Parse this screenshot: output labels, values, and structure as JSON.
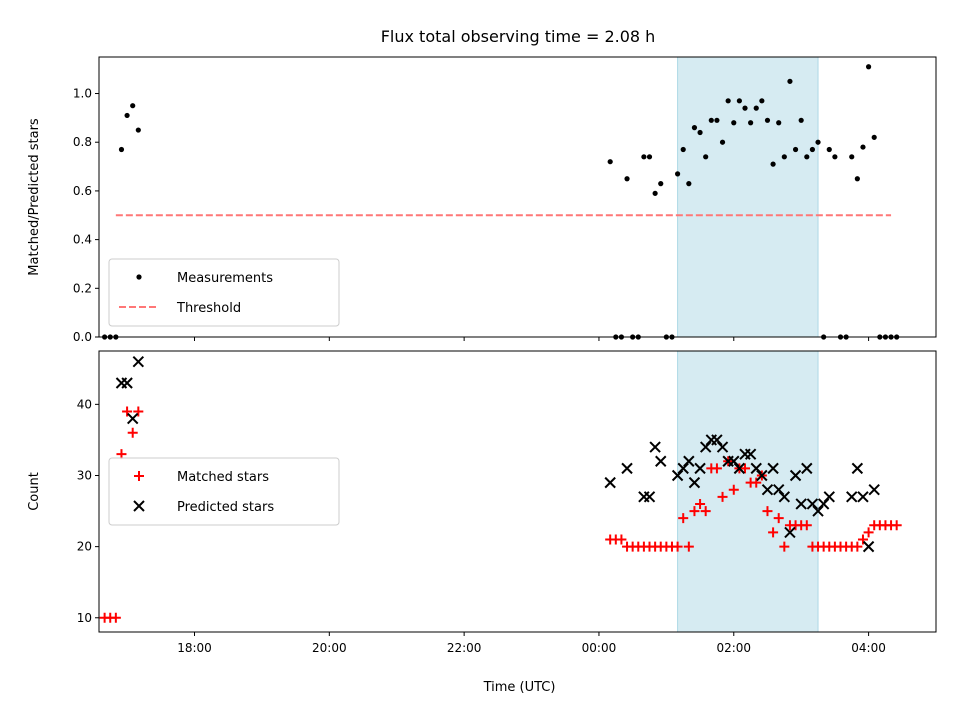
{
  "title": "Flux total observing time = 2.08 h",
  "chart_data": [
    {
      "type": "scatter",
      "panel": "top",
      "ylabel": "Matched/Predicted stars",
      "xlabel": "",
      "xlim": [
        "16:35",
        "05:00"
      ],
      "ylim": [
        0,
        1.15
      ],
      "yticks": [
        0.0,
        0.2,
        0.4,
        0.6,
        0.8,
        1.0
      ],
      "ytick_labels": [
        "0.0",
        "0.2",
        "0.4",
        "0.6",
        "0.8",
        "1.0"
      ],
      "highlight_span": [
        "01:10",
        "03:15"
      ],
      "legend": {
        "placement": "lower-left",
        "entries": [
          "Measurements",
          "Threshold"
        ]
      },
      "series": [
        {
          "name": "Measurements",
          "style": "dot",
          "color": "#000000",
          "points": [
            [
              "16:40",
              0.0
            ],
            [
              "16:45",
              0.0
            ],
            [
              "16:50",
              0.0
            ],
            [
              "16:55",
              0.77
            ],
            [
              "17:00",
              0.91
            ],
            [
              "17:05",
              0.95
            ],
            [
              "17:10",
              0.85
            ],
            [
              "00:10",
              0.72
            ],
            [
              "00:15",
              0.0
            ],
            [
              "00:20",
              0.0
            ],
            [
              "00:25",
              0.65
            ],
            [
              "00:30",
              0.0
            ],
            [
              "00:35",
              0.0
            ],
            [
              "00:40",
              0.74
            ],
            [
              "00:45",
              0.74
            ],
            [
              "00:50",
              0.59
            ],
            [
              "00:55",
              0.63
            ],
            [
              "01:00",
              0.0
            ],
            [
              "01:05",
              0.0
            ],
            [
              "01:10",
              0.67
            ],
            [
              "01:15",
              0.77
            ],
            [
              "01:20",
              0.63
            ],
            [
              "01:25",
              0.86
            ],
            [
              "01:30",
              0.84
            ],
            [
              "01:35",
              0.74
            ],
            [
              "01:40",
              0.89
            ],
            [
              "01:45",
              0.89
            ],
            [
              "01:50",
              0.8
            ],
            [
              "01:55",
              0.97
            ],
            [
              "02:00",
              0.88
            ],
            [
              "02:05",
              0.97
            ],
            [
              "02:10",
              0.94
            ],
            [
              "02:15",
              0.88
            ],
            [
              "02:20",
              0.94
            ],
            [
              "02:25",
              0.97
            ],
            [
              "02:30",
              0.89
            ],
            [
              "02:35",
              0.71
            ],
            [
              "02:40",
              0.88
            ],
            [
              "02:45",
              0.74
            ],
            [
              "02:50",
              1.05
            ],
            [
              "02:55",
              0.77
            ],
            [
              "03:00",
              0.89
            ],
            [
              "03:05",
              0.74
            ],
            [
              "03:10",
              0.77
            ],
            [
              "03:15",
              0.8
            ],
            [
              "03:20",
              0.0
            ],
            [
              "03:25",
              0.77
            ],
            [
              "03:30",
              0.74
            ],
            [
              "03:35",
              0.0
            ],
            [
              "03:40",
              0.0
            ],
            [
              "03:45",
              0.74
            ],
            [
              "03:50",
              0.65
            ],
            [
              "03:55",
              0.78
            ],
            [
              "04:00",
              1.11
            ],
            [
              "04:05",
              0.82
            ],
            [
              "04:10",
              0.0
            ],
            [
              "04:15",
              0.0
            ],
            [
              "04:20",
              0.0
            ],
            [
              "04:25",
              0.0
            ]
          ]
        },
        {
          "name": "Threshold",
          "style": "dashed-line",
          "color": "#ff7777",
          "points": [
            [
              "16:50",
              0.5
            ],
            [
              "04:20",
              0.5
            ]
          ]
        }
      ]
    },
    {
      "type": "scatter",
      "panel": "bottom",
      "ylabel": "Count",
      "xlabel": "Time (UTC)",
      "xlim": [
        "16:35",
        "05:00"
      ],
      "ylim": [
        8,
        47.5
      ],
      "yticks": [
        10,
        20,
        30,
        40
      ],
      "ytick_labels": [
        "10",
        "20",
        "30",
        "40"
      ],
      "xticks": [
        "18:00",
        "20:00",
        "22:00",
        "00:00",
        "02:00",
        "04:00"
      ],
      "xtick_labels": [
        "18:00",
        "20:00",
        "22:00",
        "00:00",
        "02:00",
        "04:00"
      ],
      "highlight_span": [
        "01:10",
        "03:15"
      ],
      "legend": {
        "placement": "center-left",
        "entries": [
          "Matched stars",
          "Predicted stars"
        ]
      },
      "series": [
        {
          "name": "Matched stars",
          "style": "plus",
          "color": "#ff0000",
          "points": [
            [
              "16:40",
              10
            ],
            [
              "16:45",
              10
            ],
            [
              "16:50",
              10
            ],
            [
              "16:55",
              33
            ],
            [
              "17:00",
              39
            ],
            [
              "17:05",
              36
            ],
            [
              "17:10",
              39
            ],
            [
              "00:10",
              21
            ],
            [
              "00:15",
              21
            ],
            [
              "00:20",
              21
            ],
            [
              "00:25",
              20
            ],
            [
              "00:30",
              20
            ],
            [
              "00:35",
              20
            ],
            [
              "00:40",
              20
            ],
            [
              "00:45",
              20
            ],
            [
              "00:50",
              20
            ],
            [
              "00:55",
              20
            ],
            [
              "01:00",
              20
            ],
            [
              "01:05",
              20
            ],
            [
              "01:10",
              20
            ],
            [
              "01:15",
              24
            ],
            [
              "01:20",
              20
            ],
            [
              "01:25",
              25
            ],
            [
              "01:30",
              26
            ],
            [
              "01:35",
              25
            ],
            [
              "01:40",
              31
            ],
            [
              "01:45",
              31
            ],
            [
              "01:50",
              27
            ],
            [
              "01:55",
              32
            ],
            [
              "02:00",
              28
            ],
            [
              "02:05",
              31
            ],
            [
              "02:10",
              31
            ],
            [
              "02:15",
              29
            ],
            [
              "02:20",
              29
            ],
            [
              "02:25",
              30
            ],
            [
              "02:30",
              25
            ],
            [
              "02:35",
              22
            ],
            [
              "02:40",
              24
            ],
            [
              "02:45",
              20
            ],
            [
              "02:50",
              23
            ],
            [
              "02:55",
              23
            ],
            [
              "03:00",
              23
            ],
            [
              "03:05",
              23
            ],
            [
              "03:10",
              20
            ],
            [
              "03:15",
              20
            ],
            [
              "03:20",
              20
            ],
            [
              "03:25",
              20
            ],
            [
              "03:30",
              20
            ],
            [
              "03:35",
              20
            ],
            [
              "03:40",
              20
            ],
            [
              "03:45",
              20
            ],
            [
              "03:50",
              20
            ],
            [
              "03:55",
              21
            ],
            [
              "04:00",
              22
            ],
            [
              "04:05",
              23
            ],
            [
              "04:10",
              23
            ],
            [
              "04:15",
              23
            ],
            [
              "04:20",
              23
            ],
            [
              "04:25",
              23
            ]
          ]
        },
        {
          "name": "Predicted stars",
          "style": "x",
          "color": "#000000",
          "points": [
            [
              "16:55",
              43
            ],
            [
              "17:00",
              43
            ],
            [
              "17:05",
              38
            ],
            [
              "17:10",
              46
            ],
            [
              "00:10",
              29
            ],
            [
              "00:25",
              31
            ],
            [
              "00:40",
              27
            ],
            [
              "00:45",
              27
            ],
            [
              "00:50",
              34
            ],
            [
              "00:55",
              32
            ],
            [
              "01:10",
              30
            ],
            [
              "01:15",
              31
            ],
            [
              "01:20",
              32
            ],
            [
              "01:25",
              29
            ],
            [
              "01:30",
              31
            ],
            [
              "01:35",
              34
            ],
            [
              "01:40",
              35
            ],
            [
              "01:45",
              35
            ],
            [
              "01:50",
              34
            ],
            [
              "01:55",
              32
            ],
            [
              "02:00",
              32
            ],
            [
              "02:05",
              31
            ],
            [
              "02:10",
              33
            ],
            [
              "02:15",
              33
            ],
            [
              "02:20",
              31
            ],
            [
              "02:25",
              30
            ],
            [
              "02:30",
              28
            ],
            [
              "02:35",
              31
            ],
            [
              "02:40",
              28
            ],
            [
              "02:45",
              27
            ],
            [
              "02:50",
              22
            ],
            [
              "02:55",
              30
            ],
            [
              "03:00",
              26
            ],
            [
              "03:05",
              31
            ],
            [
              "03:10",
              26
            ],
            [
              "03:15",
              25
            ],
            [
              "03:20",
              26
            ],
            [
              "03:25",
              27
            ],
            [
              "03:45",
              27
            ],
            [
              "03:50",
              31
            ],
            [
              "03:55",
              27
            ],
            [
              "04:00",
              20
            ],
            [
              "04:05",
              28
            ]
          ]
        }
      ]
    }
  ]
}
